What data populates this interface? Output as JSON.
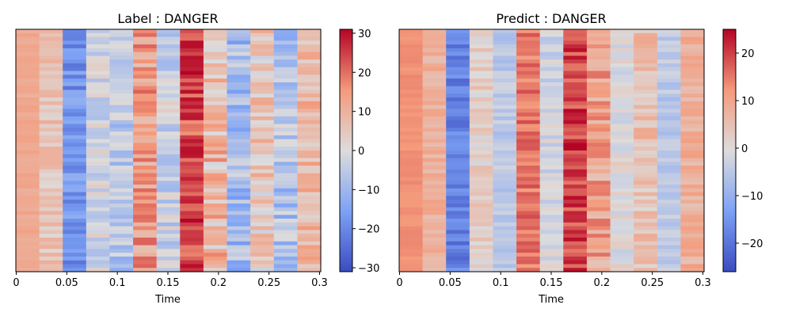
{
  "chart_data": [
    {
      "type": "heatmap",
      "title": "Label : DANGER",
      "xlabel": "Time",
      "ylabel": "",
      "xlim": [
        0,
        0.3
      ],
      "x_ticks": [
        "0",
        "0.05",
        "0.1",
        "0.15",
        "0.2",
        "0.25",
        "0.3"
      ],
      "colorbar": {
        "min": -31,
        "max": 31,
        "ticks": [
          "30",
          "20",
          "10",
          "0",
          "−10",
          "−20",
          "−30"
        ],
        "tick_values": [
          30,
          20,
          10,
          0,
          -10,
          -20,
          -30
        ]
      },
      "colormap": "coolwarm",
      "column_means": [
        12,
        6,
        -18,
        -2,
        -6,
        14,
        -3,
        24,
        8,
        -9,
        5,
        -7,
        9
      ],
      "noise": [
        2,
        5,
        6,
        6,
        7,
        8,
        7,
        8,
        10,
        8,
        8,
        8,
        7
      ]
    },
    {
      "type": "heatmap",
      "title": "Predict : DANGER",
      "xlabel": "Time",
      "ylabel": "",
      "xlim": [
        0,
        0.3
      ],
      "x_ticks": [
        "0",
        "0.05",
        "0.1",
        "0.15",
        "0.2",
        "0.25",
        "0.3"
      ],
      "colorbar": {
        "min": -26,
        "max": 25,
        "ticks": [
          "20",
          "10",
          "0",
          "−10",
          "−20"
        ],
        "tick_values": [
          20,
          10,
          0,
          -10,
          -20
        ]
      },
      "colormap": "coolwarm",
      "column_means": [
        13,
        8,
        -18,
        2,
        -5,
        15,
        -2,
        20,
        10,
        0,
        5,
        -5,
        8
      ],
      "noise": [
        1,
        3,
        4,
        4,
        3,
        4,
        4,
        5,
        6,
        4,
        5,
        3,
        4
      ]
    }
  ]
}
